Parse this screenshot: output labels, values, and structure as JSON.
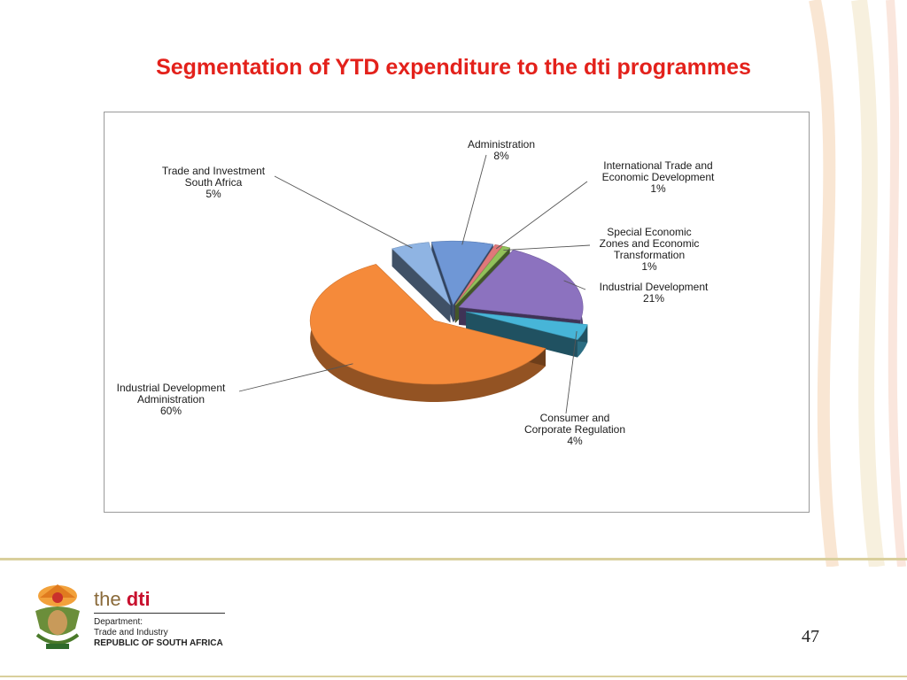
{
  "slide": {
    "title": "Segmentation of YTD expenditure to the dti programmes",
    "page_number": "47"
  },
  "footer": {
    "brand_prefix": "the ",
    "brand_name": "dti",
    "dept_line1": "Department:",
    "dept_line2": "Trade and Industry",
    "dept_line3": "REPUBLIC OF SOUTH AFRICA"
  },
  "icons": {
    "coat_of_arms": "coat-of-arms-icon"
  },
  "chart_data": {
    "type": "pie",
    "style": "3d-exploded",
    "slices": [
      {
        "label_lines": [
          "Administration",
          "8%"
        ],
        "value": 8,
        "color": "#6f97d6"
      },
      {
        "label_lines": [
          "International  Trade and",
          "Economic Development",
          "1%"
        ],
        "value": 1,
        "color": "#e0787a"
      },
      {
        "label_lines": [
          "Special Economic",
          "Zones and Economic",
          "Transformation",
          "1%"
        ],
        "value": 1,
        "color": "#92c15a"
      },
      {
        "label_lines": [
          "Industrial  Development",
          "21%"
        ],
        "value": 21,
        "color": "#8c72bf"
      },
      {
        "label_lines": [
          "Consumer and",
          "Corporate Regulation",
          "4%"
        ],
        "value": 4,
        "color": "#47b5d8"
      },
      {
        "label_lines": [
          "Industrial  Development",
          "Administration",
          "60%"
        ],
        "value": 60,
        "color": "#f58a3a"
      },
      {
        "label_lines": [
          "Trade and Investment",
          "South Africa",
          "5%"
        ],
        "value": 5,
        "color": "#8fb4e3"
      }
    ]
  }
}
